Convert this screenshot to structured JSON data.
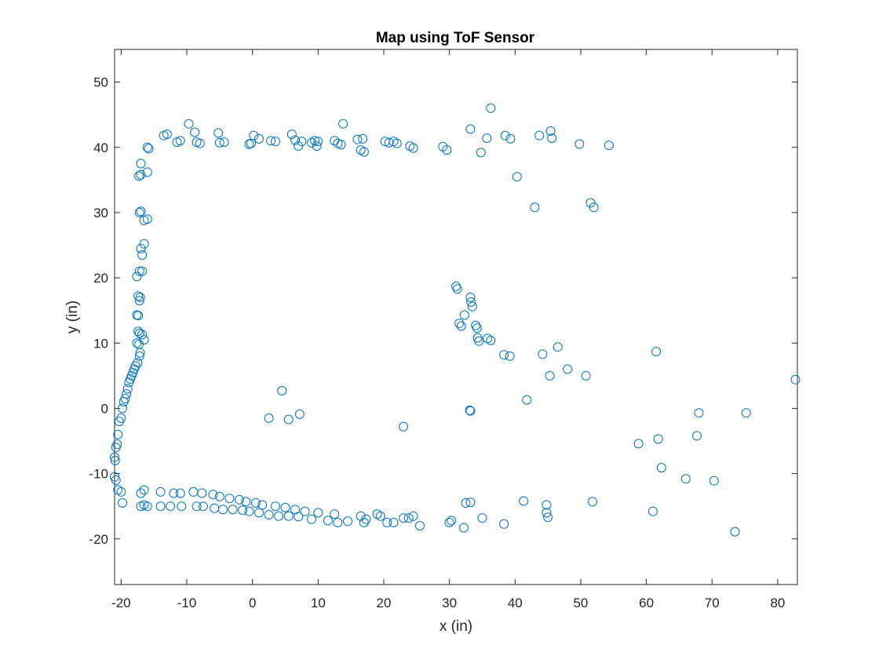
{
  "chart_data": {
    "type": "scatter",
    "title": "Map using ToF Sensor",
    "xlabel": "x (in)",
    "ylabel": "y (in)",
    "xlim": [
      -21,
      83
    ],
    "ylim": [
      -27,
      55
    ],
    "xticks": [
      -20,
      -10,
      0,
      10,
      20,
      30,
      40,
      50,
      60,
      70,
      80
    ],
    "yticks": [
      -20,
      -10,
      0,
      10,
      20,
      30,
      40,
      50
    ],
    "grid": false,
    "legend": "none",
    "marker": "open-circle",
    "color": "#0072BD",
    "series": [
      {
        "x": [
          -13.5,
          -13,
          -11.5,
          -11,
          -9.7,
          -8.8,
          -8.5,
          -8,
          -5.2,
          -5,
          -4.3,
          -0.5,
          -0.2,
          0.2,
          1,
          2.8,
          3.5,
          6,
          6.5,
          7,
          7.5,
          9,
          9.5,
          9.8,
          10,
          12.5,
          13,
          13.5,
          13.8,
          16,
          16.5,
          16.8,
          17,
          20.2,
          20.8,
          21.5,
          22,
          24,
          24.5,
          29,
          29.6,
          33.2,
          34.8,
          35.7,
          38.5,
          39.3,
          43.7,
          45.4,
          45.6,
          49.8,
          54.3,
          -16,
          -15.8,
          -16,
          -17,
          -17.3,
          -17,
          -17.2,
          -16.5,
          -16,
          -17,
          -17,
          -16.8,
          -16.5,
          -17.2,
          -16.8,
          -17.6,
          -17.4,
          -17.1,
          -17.2,
          -17.6,
          -17.4,
          -17.4,
          -17.2,
          -16.8,
          -16.5,
          -17.6,
          -17.3,
          -17.1,
          -17.2,
          -17.5,
          -17.8,
          -18,
          -18.2,
          -18.4,
          -18.6,
          -18.8,
          -19,
          -19.2,
          -19.4,
          -19.6,
          -19.8,
          -20,
          -20.3,
          -20.5,
          -20.6,
          -20.8,
          -21,
          -20.9,
          -21,
          -20.8,
          -20.5,
          -20,
          -19.8,
          -17,
          -16.5,
          -16,
          -17,
          -16.5,
          -14,
          -14,
          -12.5,
          -12,
          -11,
          -10.8,
          -9,
          -8.5,
          -7.7,
          -7.5,
          -6,
          -5.8,
          -5,
          -4.5,
          -3.5,
          -3,
          -2,
          -1.5,
          -1,
          -0.5,
          0.5,
          1,
          1.5,
          2.5,
          3.5,
          4,
          5,
          5.5,
          6.5,
          7,
          8,
          9,
          10,
          11.5,
          12.5,
          13,
          14.5,
          16.5,
          17,
          17.3,
          19,
          19.5,
          20.5,
          21.5,
          23,
          23.8,
          24.5,
          25.5,
          30,
          30.3,
          32.2,
          32.5,
          33.2,
          35,
          38.3,
          41.3,
          44.8,
          45,
          44.8,
          51.8,
          31,
          31.2,
          33.2,
          33.3,
          33.5,
          32.3,
          31.5,
          31.8,
          34,
          34.2,
          34.3,
          34.5,
          35.8,
          36.3,
          38.3,
          39.2,
          44.2,
          46.5,
          48,
          45.3,
          50.8,
          41.8,
          36.3,
          40.3,
          43,
          51.5,
          52,
          61.5,
          33.1,
          33.2,
          4.5,
          2.5,
          5.5,
          7.2,
          23,
          58.8,
          61.8,
          62.3,
          66,
          67.7,
          68,
          70.3,
          75.2,
          73.5,
          61,
          82.7
        ],
        "y": [
          41.8,
          42,
          40.8,
          41,
          43.6,
          42.3,
          40.8,
          40.6,
          42.2,
          40.7,
          40.8,
          40.5,
          40.6,
          41.8,
          41.3,
          41,
          40.9,
          42,
          41.1,
          40.2,
          40.9,
          40.7,
          41,
          40.2,
          40.9,
          41,
          40.6,
          40.4,
          43.6,
          41.2,
          39.6,
          41.3,
          39.3,
          40.9,
          40.7,
          40.9,
          40.6,
          40.2,
          39.9,
          40.1,
          39.6,
          42.8,
          39.2,
          41.4,
          41.8,
          41.3,
          41.8,
          42.5,
          41.4,
          40.5,
          40.3,
          40,
          39.8,
          36.2,
          37.5,
          35.6,
          35.8,
          30,
          28.8,
          29,
          30.2,
          24.5,
          23.5,
          25.2,
          21,
          21,
          20.2,
          17.2,
          17,
          16.5,
          14.3,
          14.2,
          11.8,
          11.5,
          11.3,
          10.5,
          10,
          9.8,
          8.5,
          8,
          7,
          6.5,
          6,
          5.5,
          5,
          4.5,
          4,
          3,
          2.2,
          1.5,
          1,
          0,
          -1.5,
          -2,
          -4,
          -5.5,
          -6,
          -7.5,
          -8,
          -10.5,
          -11,
          -12.5,
          -12.8,
          -14.5,
          -13,
          -12.5,
          -15,
          -15,
          -14.8,
          -12.8,
          -15,
          -15,
          -13,
          -13,
          -15,
          -12.8,
          -15,
          -13,
          -15,
          -13.2,
          -15.3,
          -13.5,
          -15.5,
          -13.8,
          -15.5,
          -14,
          -15.6,
          -14.3,
          -15.8,
          -14.5,
          -16,
          -14.8,
          -16.3,
          -15,
          -16.5,
          -15.2,
          -16.5,
          -15.5,
          -16.6,
          -15.8,
          -17,
          -16,
          -17.2,
          -16.2,
          -17.5,
          -17.3,
          -16.5,
          -17.5,
          -17,
          -16.2,
          -16.5,
          -17.5,
          -17.5,
          -16.8,
          -16.8,
          -16.5,
          -18,
          -17.5,
          -17.2,
          -18.3,
          -14.5,
          -14.4,
          -16.8,
          -17.7,
          -14.2,
          -14.8,
          -16.7,
          -16,
          -14.3,
          18.7,
          18.3,
          17,
          16.3,
          15.6,
          14.3,
          13,
          12.6,
          12.7,
          12.3,
          10.8,
          10.3,
          10.7,
          10.4,
          8.2,
          8,
          8.3,
          9.4,
          6,
          5,
          5,
          1.3,
          46,
          35.5,
          30.8,
          31.5,
          30.8,
          8.7,
          -0.3,
          -0.4,
          2.7,
          -1.5,
          -1.7,
          -0.9,
          -2.8,
          -5.4,
          -4.7,
          -9.1,
          -10.8,
          -4.2,
          -0.7,
          -11.1,
          -0.7,
          -18.9,
          -15.8,
          4.4
        ]
      }
    ]
  }
}
